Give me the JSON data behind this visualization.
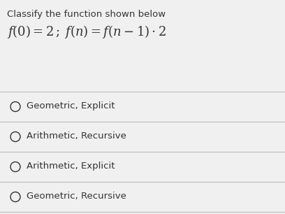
{
  "title": "Classify the function shown below",
  "formula": "$f(0) = 2\\,;\\; f(n) = f(n-1) \\cdot 2$",
  "options": [
    "Geometric, Explicit",
    "Arithmetic, Recursive",
    "Arithmetic, Explicit",
    "Geometric, Recursive"
  ],
  "bg_color": "#f0f0f0",
  "title_fontsize": 9.5,
  "formula_fontsize": 13,
  "option_fontsize": 9.5,
  "title_color": "#333333",
  "option_color": "#333333",
  "line_color": "#bbbbbb"
}
